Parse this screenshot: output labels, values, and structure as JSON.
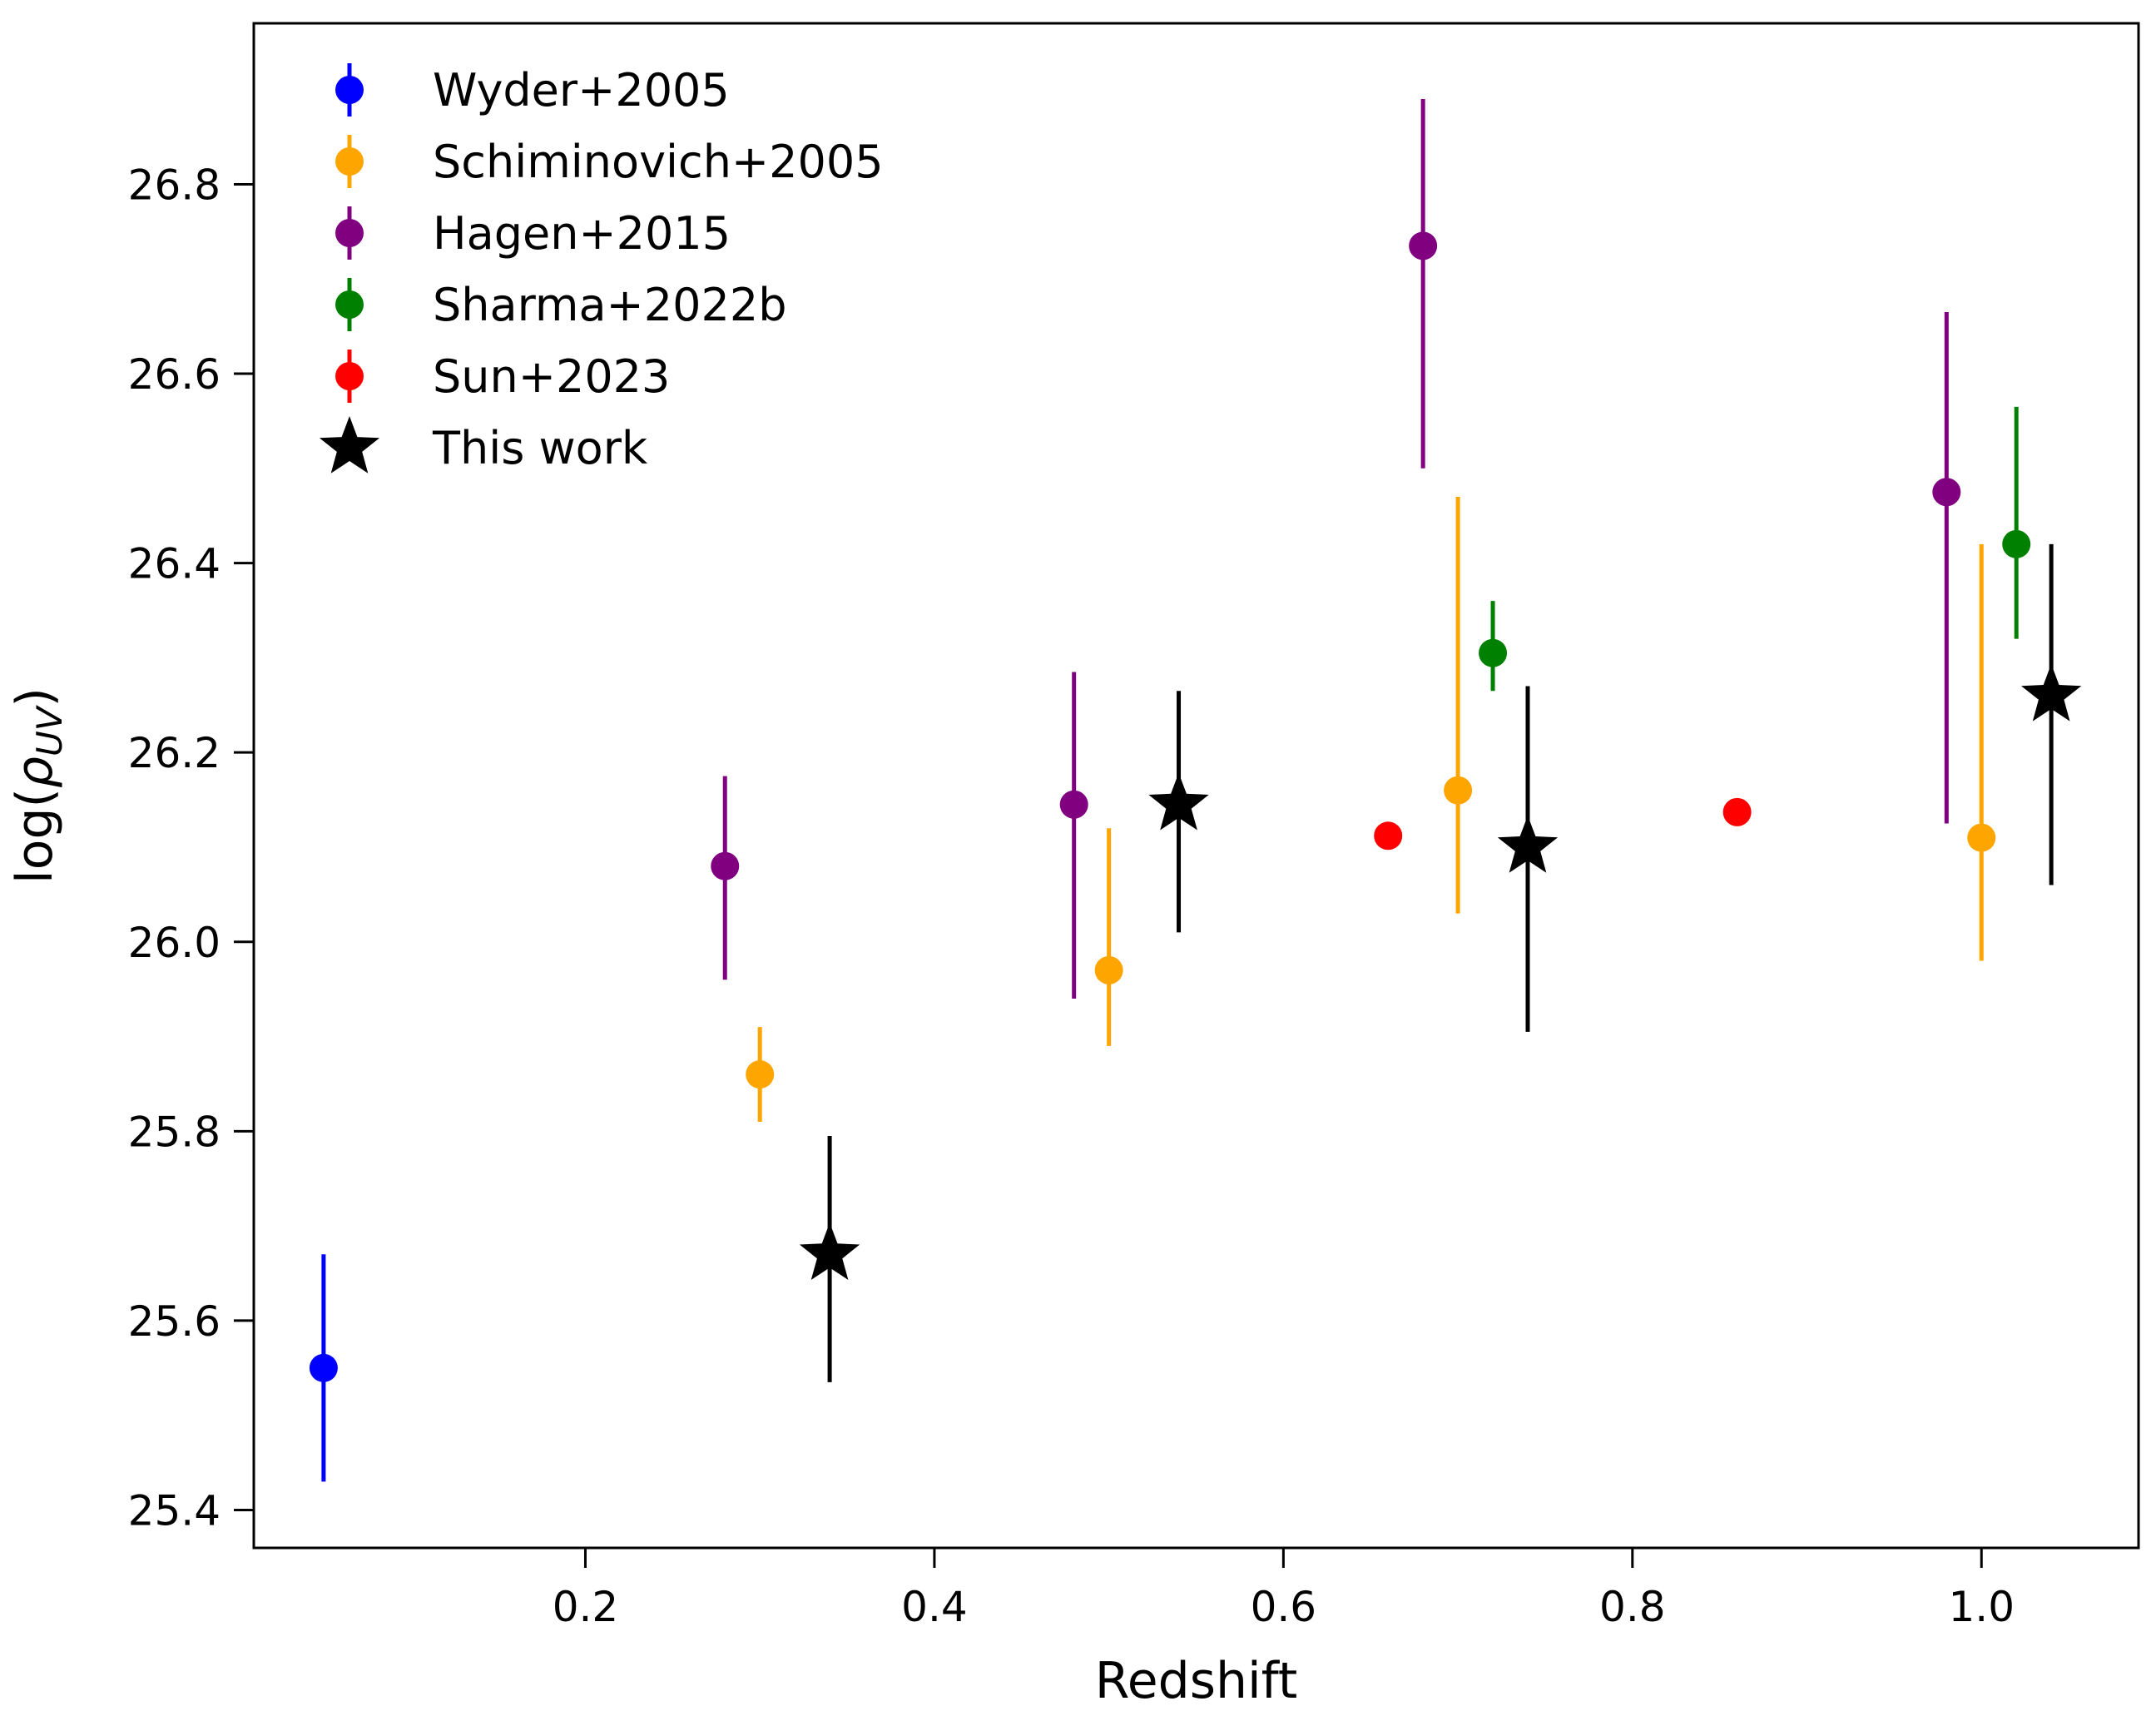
{
  "chart_data": {
    "type": "scatter",
    "title": "",
    "xlabel": "Redshift",
    "ylabel_prefix": "log(",
    "ylabel_symbol": "ρ",
    "ylabel_subscript": "UV",
    "ylabel_suffix": ")",
    "xlim": [
      0.01,
      1.09
    ],
    "ylim": [
      25.36,
      26.97
    ],
    "xticks": [
      0.2,
      0.4,
      0.6,
      0.8,
      1.0
    ],
    "xtick_labels": [
      "0.2",
      "0.4",
      "0.6",
      "0.8",
      "1.0"
    ],
    "yticks": [
      25.4,
      25.6,
      25.8,
      26.0,
      26.2,
      26.4,
      26.6,
      26.8
    ],
    "ytick_labels": [
      "25.4",
      "25.6",
      "25.8",
      "26.0",
      "26.2",
      "26.4",
      "26.6",
      "26.8"
    ],
    "grid": false,
    "legend_position": "top-left",
    "series": [
      {
        "name": "Wyder+2005",
        "color": "#0000ff",
        "marker": "circle",
        "points": [
          {
            "x": 0.05,
            "y": 25.55,
            "ylo": 25.43,
            "yhi": 25.67
          }
        ]
      },
      {
        "name": "Schiminovich+2005",
        "color": "#ffa500",
        "marker": "circle",
        "points": [
          {
            "x": 0.3,
            "y": 25.86,
            "ylo": 25.81,
            "yhi": 25.91
          },
          {
            "x": 0.5,
            "y": 25.97,
            "ylo": 25.89,
            "yhi": 26.12
          },
          {
            "x": 0.7,
            "y": 26.16,
            "ylo": 26.03,
            "yhi": 26.47
          },
          {
            "x": 1.0,
            "y": 26.11,
            "ylo": 25.98,
            "yhi": 26.42
          }
        ]
      },
      {
        "name": "Hagen+2015",
        "color": "#800080",
        "marker": "circle",
        "points": [
          {
            "x": 0.28,
            "y": 26.08,
            "ylo": 25.96,
            "yhi": 26.175
          },
          {
            "x": 0.48,
            "y": 26.145,
            "ylo": 25.94,
            "yhi": 26.285
          },
          {
            "x": 0.68,
            "y": 26.735,
            "ylo": 26.5,
            "yhi": 26.89
          },
          {
            "x": 0.98,
            "y": 26.475,
            "ylo": 26.125,
            "yhi": 26.665
          }
        ]
      },
      {
        "name": "Sharma+2022b",
        "color": "#008000",
        "marker": "circle",
        "points": [
          {
            "x": 0.72,
            "y": 26.305,
            "ylo": 26.265,
            "yhi": 26.36
          },
          {
            "x": 1.02,
            "y": 26.42,
            "ylo": 26.32,
            "yhi": 26.565
          }
        ]
      },
      {
        "name": "Sun+2023",
        "color": "#ff0000",
        "marker": "circle",
        "points": [
          {
            "x": 0.66,
            "y": 26.112
          },
          {
            "x": 0.86,
            "y": 26.137
          }
        ]
      },
      {
        "name": "This work",
        "color": "#000000",
        "marker": "star",
        "points": [
          {
            "x": 0.34,
            "y": 25.67,
            "ylo": 25.535,
            "yhi": 25.795
          },
          {
            "x": 0.54,
            "y": 26.145,
            "ylo": 26.01,
            "yhi": 26.265
          },
          {
            "x": 0.74,
            "y": 26.1,
            "ylo": 25.905,
            "yhi": 26.27
          },
          {
            "x": 1.04,
            "y": 26.26,
            "ylo": 26.06,
            "yhi": 26.42
          }
        ]
      }
    ]
  }
}
